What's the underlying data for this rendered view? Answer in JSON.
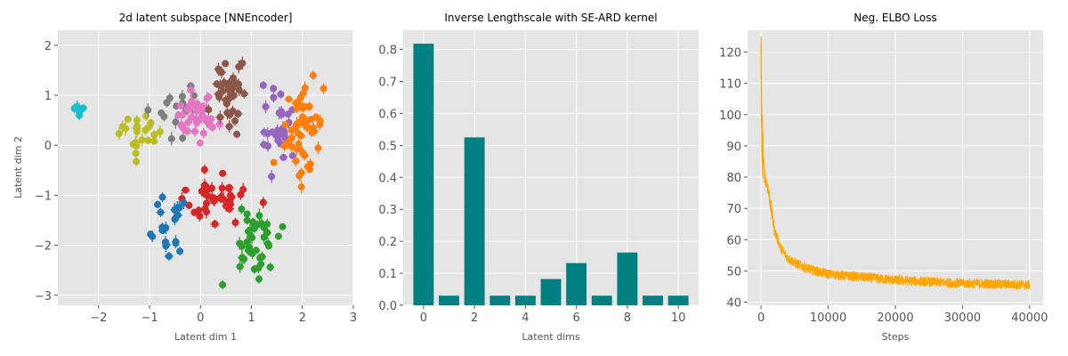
{
  "chart_data": [
    {
      "type": "scatter",
      "title": "2d latent subspace [NNEncoder]",
      "xlabel": "Latent dim 1",
      "ylabel": "Latent dim 2",
      "xlim": [
        -2.8,
        3.0
      ],
      "ylim": [
        -3.2,
        2.3
      ],
      "xticks": [
        -2,
        -1,
        0,
        1,
        2,
        3
      ],
      "yticks": [
        -3,
        -2,
        -1,
        0,
        1,
        2
      ],
      "xtick_labels": [
        "−2",
        "−1",
        "0",
        "1",
        "2",
        "3"
      ],
      "ytick_labels": [
        "−3",
        "−2",
        "−1",
        "0",
        "1",
        "2"
      ],
      "grid": true,
      "error_bars": true,
      "clusters": [
        {
          "color": "#17becf",
          "center": [
            -2.4,
            0.72
          ],
          "spread": [
            0.07,
            0.06
          ],
          "n": 6
        },
        {
          "color": "#bcbd22",
          "center": [
            -1.2,
            0.25
          ],
          "spread": [
            0.2,
            0.22
          ],
          "n": 22
        },
        {
          "color": "#7f7f7f",
          "center": [
            -0.55,
            0.75
          ],
          "spread": [
            0.28,
            0.3
          ],
          "n": 16
        },
        {
          "color": "#e377c2",
          "center": [
            -0.05,
            0.55
          ],
          "spread": [
            0.22,
            0.22
          ],
          "n": 40
        },
        {
          "color": "#8c564b",
          "center": [
            0.55,
            1.05
          ],
          "spread": [
            0.18,
            0.4
          ],
          "n": 38
        },
        {
          "color": "#9467bd",
          "center": [
            1.55,
            0.3
          ],
          "spread": [
            0.15,
            0.4
          ],
          "n": 30
        },
        {
          "color": "#ff7f0e",
          "center": [
            2.05,
            0.35
          ],
          "spread": [
            0.18,
            0.45
          ],
          "n": 55
        },
        {
          "color": "#d62728",
          "center": [
            0.25,
            -1.05
          ],
          "spread": [
            0.3,
            0.25
          ],
          "n": 40
        },
        {
          "color": "#1f77b4",
          "center": [
            -0.65,
            -1.7
          ],
          "spread": [
            0.2,
            0.35
          ],
          "n": 22
        },
        {
          "color": "#2ca02c",
          "center": [
            1.0,
            -1.9
          ],
          "spread": [
            0.25,
            0.35
          ],
          "n": 40
        }
      ]
    },
    {
      "type": "bar",
      "title": "Inverse Lengthscale with SE-ARD kernel",
      "xlabel": "Latent dims",
      "ylabel": "",
      "categories": [
        0,
        1,
        2,
        3,
        4,
        5,
        6,
        7,
        8,
        9,
        10
      ],
      "values": [
        0.818,
        0.03,
        0.525,
        0.03,
        0.03,
        0.082,
        0.132,
        0.03,
        0.165,
        0.03,
        0.03
      ],
      "xlim": [
        -0.8,
        10.8
      ],
      "ylim": [
        0,
        0.86
      ],
      "xticks": [
        0,
        2,
        4,
        6,
        8,
        10
      ],
      "xtick_labels": [
        "0",
        "2",
        "4",
        "6",
        "8",
        "10"
      ],
      "yticks": [
        0.0,
        0.1,
        0.2,
        0.3,
        0.4,
        0.5,
        0.6,
        0.7,
        0.8
      ],
      "ytick_labels": [
        "0.0",
        "0.1",
        "0.2",
        "0.3",
        "0.4",
        "0.5",
        "0.6",
        "0.7",
        "0.8"
      ],
      "color": "#008080",
      "grid": true
    },
    {
      "type": "line",
      "title": "Neg. ELBO Loss",
      "xlabel": "Steps",
      "ylabel": "",
      "x": [
        0,
        100,
        300,
        600,
        1000,
        1500,
        2000,
        3000,
        4000,
        6000,
        8000,
        10000,
        15000,
        20000,
        25000,
        30000,
        35000,
        40000
      ],
      "y": [
        123,
        95,
        86,
        80,
        77,
        70,
        63,
        57,
        54,
        51.5,
        50,
        49,
        48,
        47,
        46.5,
        46,
        45.8,
        45.5
      ],
      "xlim": [
        -2000,
        42000
      ],
      "ylim": [
        39,
        127
      ],
      "xticks": [
        0,
        10000,
        20000,
        30000,
        40000
      ],
      "xtick_labels": [
        "0",
        "10000",
        "20000",
        "30000",
        "40000"
      ],
      "yticks": [
        40,
        50,
        60,
        70,
        80,
        90,
        100,
        110,
        120
      ],
      "ytick_labels": [
        "40",
        "50",
        "60",
        "70",
        "80",
        "90",
        "100",
        "110",
        "120"
      ],
      "color": "#ffa500",
      "grid": true
    }
  ]
}
